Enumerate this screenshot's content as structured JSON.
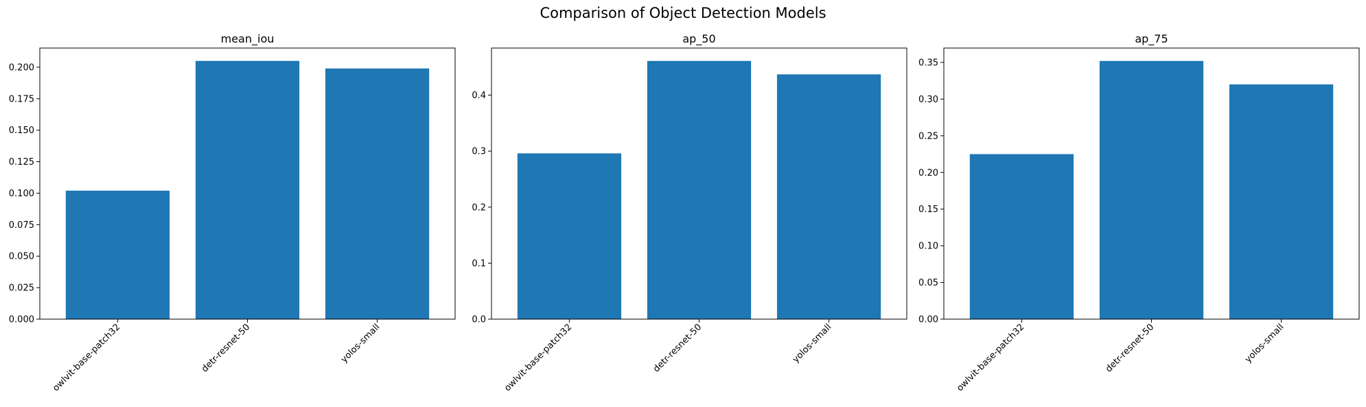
{
  "figure": {
    "title": "Comparison of Object Detection Models"
  },
  "chart_data": [
    {
      "type": "bar",
      "title": "mean_iou",
      "xlabel": "",
      "ylabel": "",
      "categories": [
        "owlvit-base-patch32",
        "detr-resnet-50",
        "yolos-small"
      ],
      "values": [
        0.102,
        0.205,
        0.199
      ],
      "ylim": [
        0,
        0.2152
      ],
      "yticks": [
        "0.000",
        "0.025",
        "0.050",
        "0.075",
        "0.100",
        "0.125",
        "0.150",
        "0.175",
        "0.200"
      ],
      "color": "#1f77b4",
      "grid": false,
      "legend": "none"
    },
    {
      "type": "bar",
      "title": "ap_50",
      "xlabel": "",
      "ylabel": "",
      "categories": [
        "owlvit-base-patch32",
        "detr-resnet-50",
        "yolos-small"
      ],
      "values": [
        0.296,
        0.461,
        0.437
      ],
      "ylim": [
        0,
        0.484
      ],
      "yticks": [
        "0.0",
        "0.1",
        "0.2",
        "0.3",
        "0.4"
      ],
      "color": "#1f77b4",
      "grid": false,
      "legend": "none"
    },
    {
      "type": "bar",
      "title": "ap_75",
      "xlabel": "",
      "ylabel": "",
      "categories": [
        "owlvit-base-patch32",
        "detr-resnet-50",
        "yolos-small"
      ],
      "values": [
        0.225,
        0.352,
        0.32
      ],
      "ylim": [
        0,
        0.3696
      ],
      "yticks": [
        "0.00",
        "0.05",
        "0.10",
        "0.15",
        "0.20",
        "0.25",
        "0.30",
        "0.35"
      ],
      "color": "#1f77b4",
      "grid": false,
      "legend": "none"
    }
  ]
}
